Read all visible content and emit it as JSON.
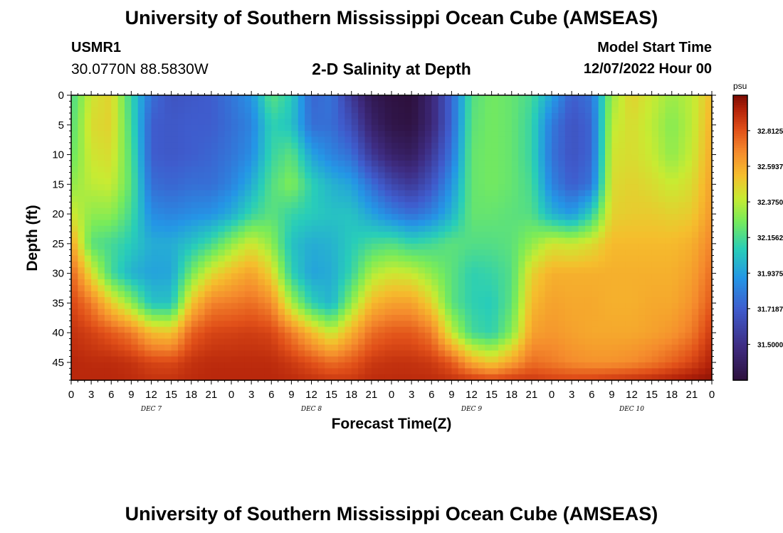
{
  "header": {
    "title": "University of Southern Mississippi Ocean Cube (AMSEAS)",
    "station_id": "USMR1",
    "coordinates": "30.0770N  88.5830W",
    "plot_title": "2-D Salinity at Depth",
    "model_start_label": "Model Start Time",
    "model_start_value": "12/07/2022 Hour 00"
  },
  "footer": {
    "title": "University of Southern Mississippi Ocean Cube (AMSEAS)"
  },
  "chart_data": {
    "type": "heatmap",
    "title": "2-D Salinity at Depth",
    "xlabel": "Forecast Time(Z)",
    "ylabel": "Depth (ft)",
    "x_range_hours": [
      0,
      96
    ],
    "x_tick_labels": [
      "0",
      "3",
      "6",
      "9",
      "12",
      "15",
      "18",
      "21",
      "0",
      "3",
      "6",
      "9",
      "12",
      "15",
      "18",
      "21",
      "0",
      "3",
      "6",
      "9",
      "12",
      "15",
      "18",
      "21",
      "0",
      "3",
      "6",
      "9",
      "12",
      "15",
      "18",
      "21",
      "0"
    ],
    "day_labels": [
      {
        "label": "DEC 7",
        "hour": 12
      },
      {
        "label": "DEC 8",
        "hour": 36
      },
      {
        "label": "DEC 9",
        "hour": 60
      },
      {
        "label": "DEC 10",
        "hour": 84
      }
    ],
    "y_range_ft": [
      0,
      48
    ],
    "y_ticks": [
      0,
      5,
      10,
      15,
      20,
      25,
      30,
      35,
      40,
      45
    ],
    "colorbar": {
      "unit": "psu",
      "range": [
        31.28,
        33.03
      ],
      "tick_labels": [
        "32.8125",
        "32.5937",
        "32.3750",
        "32.1562",
        "31.9375",
        "31.7187",
        "31.5000"
      ],
      "tick_values": [
        32.8125,
        32.5937,
        32.375,
        32.1562,
        31.9375,
        31.7187,
        31.5
      ]
    },
    "salinity_field": {
      "description": "psu values at (hour, depth_ft) sample points",
      "depths": [
        0,
        5,
        10,
        15,
        20,
        25,
        30,
        35,
        40,
        45,
        48
      ],
      "columns": [
        {
          "hour": 0,
          "values": [
            32.15,
            32.18,
            32.22,
            32.3,
            32.42,
            32.62,
            32.78,
            32.85,
            32.9,
            32.93,
            32.93
          ]
        },
        {
          "hour": 3,
          "values": [
            32.42,
            32.45,
            32.42,
            32.38,
            32.3,
            32.2,
            32.45,
            32.72,
            32.86,
            32.92,
            32.93
          ]
        },
        {
          "hour": 6,
          "values": [
            32.48,
            32.48,
            32.45,
            32.4,
            32.3,
            32.15,
            32.15,
            32.5,
            32.8,
            32.92,
            32.93
          ]
        },
        {
          "hour": 9,
          "values": [
            32.12,
            32.15,
            32.18,
            32.2,
            32.15,
            32.08,
            32.0,
            32.3,
            32.72,
            32.9,
            32.92
          ]
        },
        {
          "hour": 12,
          "values": [
            31.78,
            31.72,
            31.72,
            31.78,
            31.88,
            31.98,
            31.95,
            32.05,
            32.55,
            32.85,
            32.9
          ]
        },
        {
          "hour": 15,
          "values": [
            31.68,
            31.7,
            31.7,
            31.75,
            31.85,
            31.98,
            31.96,
            32.05,
            32.52,
            32.84,
            32.9
          ]
        },
        {
          "hour": 18,
          "values": [
            31.7,
            31.72,
            31.72,
            31.78,
            31.88,
            32.05,
            32.25,
            32.52,
            32.78,
            32.9,
            32.92
          ]
        },
        {
          "hour": 21,
          "values": [
            31.72,
            31.72,
            31.75,
            31.78,
            31.9,
            32.15,
            32.45,
            32.7,
            32.85,
            32.92,
            32.93
          ]
        },
        {
          "hour": 24,
          "values": [
            31.8,
            31.78,
            31.8,
            31.85,
            31.98,
            32.3,
            32.55,
            32.72,
            32.86,
            32.92,
            32.93
          ]
        },
        {
          "hour": 27,
          "values": [
            31.9,
            31.85,
            31.88,
            31.98,
            32.12,
            32.42,
            32.62,
            32.75,
            32.87,
            32.92,
            32.93
          ]
        },
        {
          "hour": 30,
          "values": [
            32.2,
            32.1,
            32.12,
            32.18,
            32.2,
            32.3,
            32.48,
            32.68,
            32.85,
            32.92,
            32.93
          ]
        },
        {
          "hour": 33,
          "values": [
            32.08,
            32.05,
            32.2,
            32.28,
            32.12,
            32.05,
            32.1,
            32.35,
            32.72,
            32.88,
            32.92
          ]
        },
        {
          "hour": 36,
          "values": [
            31.75,
            31.78,
            31.95,
            32.1,
            32.08,
            31.98,
            31.95,
            32.1,
            32.55,
            32.82,
            32.9
          ]
        },
        {
          "hour": 39,
          "values": [
            31.8,
            31.78,
            31.85,
            32.0,
            32.05,
            32.0,
            31.98,
            32.0,
            32.4,
            32.75,
            32.88
          ]
        },
        {
          "hour": 42,
          "values": [
            31.55,
            31.65,
            31.78,
            31.95,
            32.05,
            32.08,
            32.12,
            32.3,
            32.58,
            32.8,
            32.88
          ]
        },
        {
          "hour": 45,
          "values": [
            31.35,
            31.42,
            31.55,
            31.78,
            31.95,
            32.15,
            32.35,
            32.55,
            32.75,
            32.88,
            32.92
          ]
        },
        {
          "hour": 48,
          "values": [
            31.3,
            31.32,
            31.42,
            31.62,
            31.85,
            32.18,
            32.42,
            32.62,
            32.8,
            32.9,
            32.92
          ]
        },
        {
          "hour": 51,
          "values": [
            31.28,
            31.3,
            31.38,
            31.55,
            31.78,
            32.12,
            32.4,
            32.62,
            32.8,
            32.9,
            32.92
          ]
        },
        {
          "hour": 54,
          "values": [
            31.45,
            31.45,
            31.55,
            31.68,
            31.85,
            32.15,
            32.3,
            32.48,
            32.72,
            32.88,
            32.92
          ]
        },
        {
          "hour": 57,
          "values": [
            31.75,
            31.75,
            31.8,
            31.9,
            32.0,
            32.2,
            32.2,
            32.2,
            32.4,
            32.8,
            32.9
          ]
        },
        {
          "hour": 60,
          "values": [
            32.18,
            32.2,
            32.22,
            32.22,
            32.22,
            32.18,
            32.1,
            32.1,
            32.15,
            32.6,
            32.88
          ]
        },
        {
          "hour": 63,
          "values": [
            32.25,
            32.25,
            32.25,
            32.25,
            32.22,
            32.18,
            32.12,
            32.08,
            32.1,
            32.5,
            32.85
          ]
        },
        {
          "hour": 66,
          "values": [
            32.22,
            32.22,
            32.22,
            32.22,
            32.2,
            32.2,
            32.18,
            32.2,
            32.28,
            32.62,
            32.88
          ]
        },
        {
          "hour": 69,
          "values": [
            32.15,
            32.12,
            32.12,
            32.15,
            32.18,
            32.3,
            32.48,
            32.55,
            32.62,
            32.75,
            32.88
          ]
        },
        {
          "hour": 72,
          "values": [
            31.95,
            31.82,
            31.8,
            31.85,
            32.0,
            32.42,
            32.58,
            32.62,
            32.65,
            32.72,
            32.86
          ]
        },
        {
          "hour": 75,
          "values": [
            31.72,
            31.68,
            31.68,
            31.72,
            31.92,
            32.4,
            32.58,
            32.6,
            32.62,
            32.68,
            32.85
          ]
        },
        {
          "hour": 78,
          "values": [
            31.8,
            31.75,
            31.75,
            31.8,
            32.1,
            32.45,
            32.58,
            32.6,
            32.6,
            32.66,
            32.86
          ]
        },
        {
          "hour": 81,
          "values": [
            32.32,
            32.38,
            32.42,
            32.45,
            32.48,
            32.55,
            32.58,
            32.58,
            32.6,
            32.66,
            32.88
          ]
        },
        {
          "hour": 84,
          "values": [
            32.48,
            32.45,
            32.45,
            32.48,
            32.5,
            32.55,
            32.58,
            32.58,
            32.6,
            32.68,
            32.9
          ]
        },
        {
          "hour": 87,
          "values": [
            32.4,
            32.38,
            32.4,
            32.45,
            32.5,
            32.55,
            32.58,
            32.6,
            32.62,
            32.72,
            32.92
          ]
        },
        {
          "hour": 90,
          "values": [
            32.32,
            32.28,
            32.3,
            32.4,
            32.48,
            32.55,
            32.58,
            32.6,
            32.65,
            32.78,
            32.95
          ]
        },
        {
          "hour": 93,
          "values": [
            32.38,
            32.38,
            32.4,
            32.45,
            32.5,
            32.58,
            32.62,
            32.66,
            32.72,
            32.85,
            32.98
          ]
        },
        {
          "hour": 96,
          "values": [
            32.55,
            32.58,
            32.6,
            32.62,
            32.65,
            32.7,
            32.75,
            32.8,
            32.88,
            32.95,
            33.0
          ]
        }
      ]
    }
  }
}
